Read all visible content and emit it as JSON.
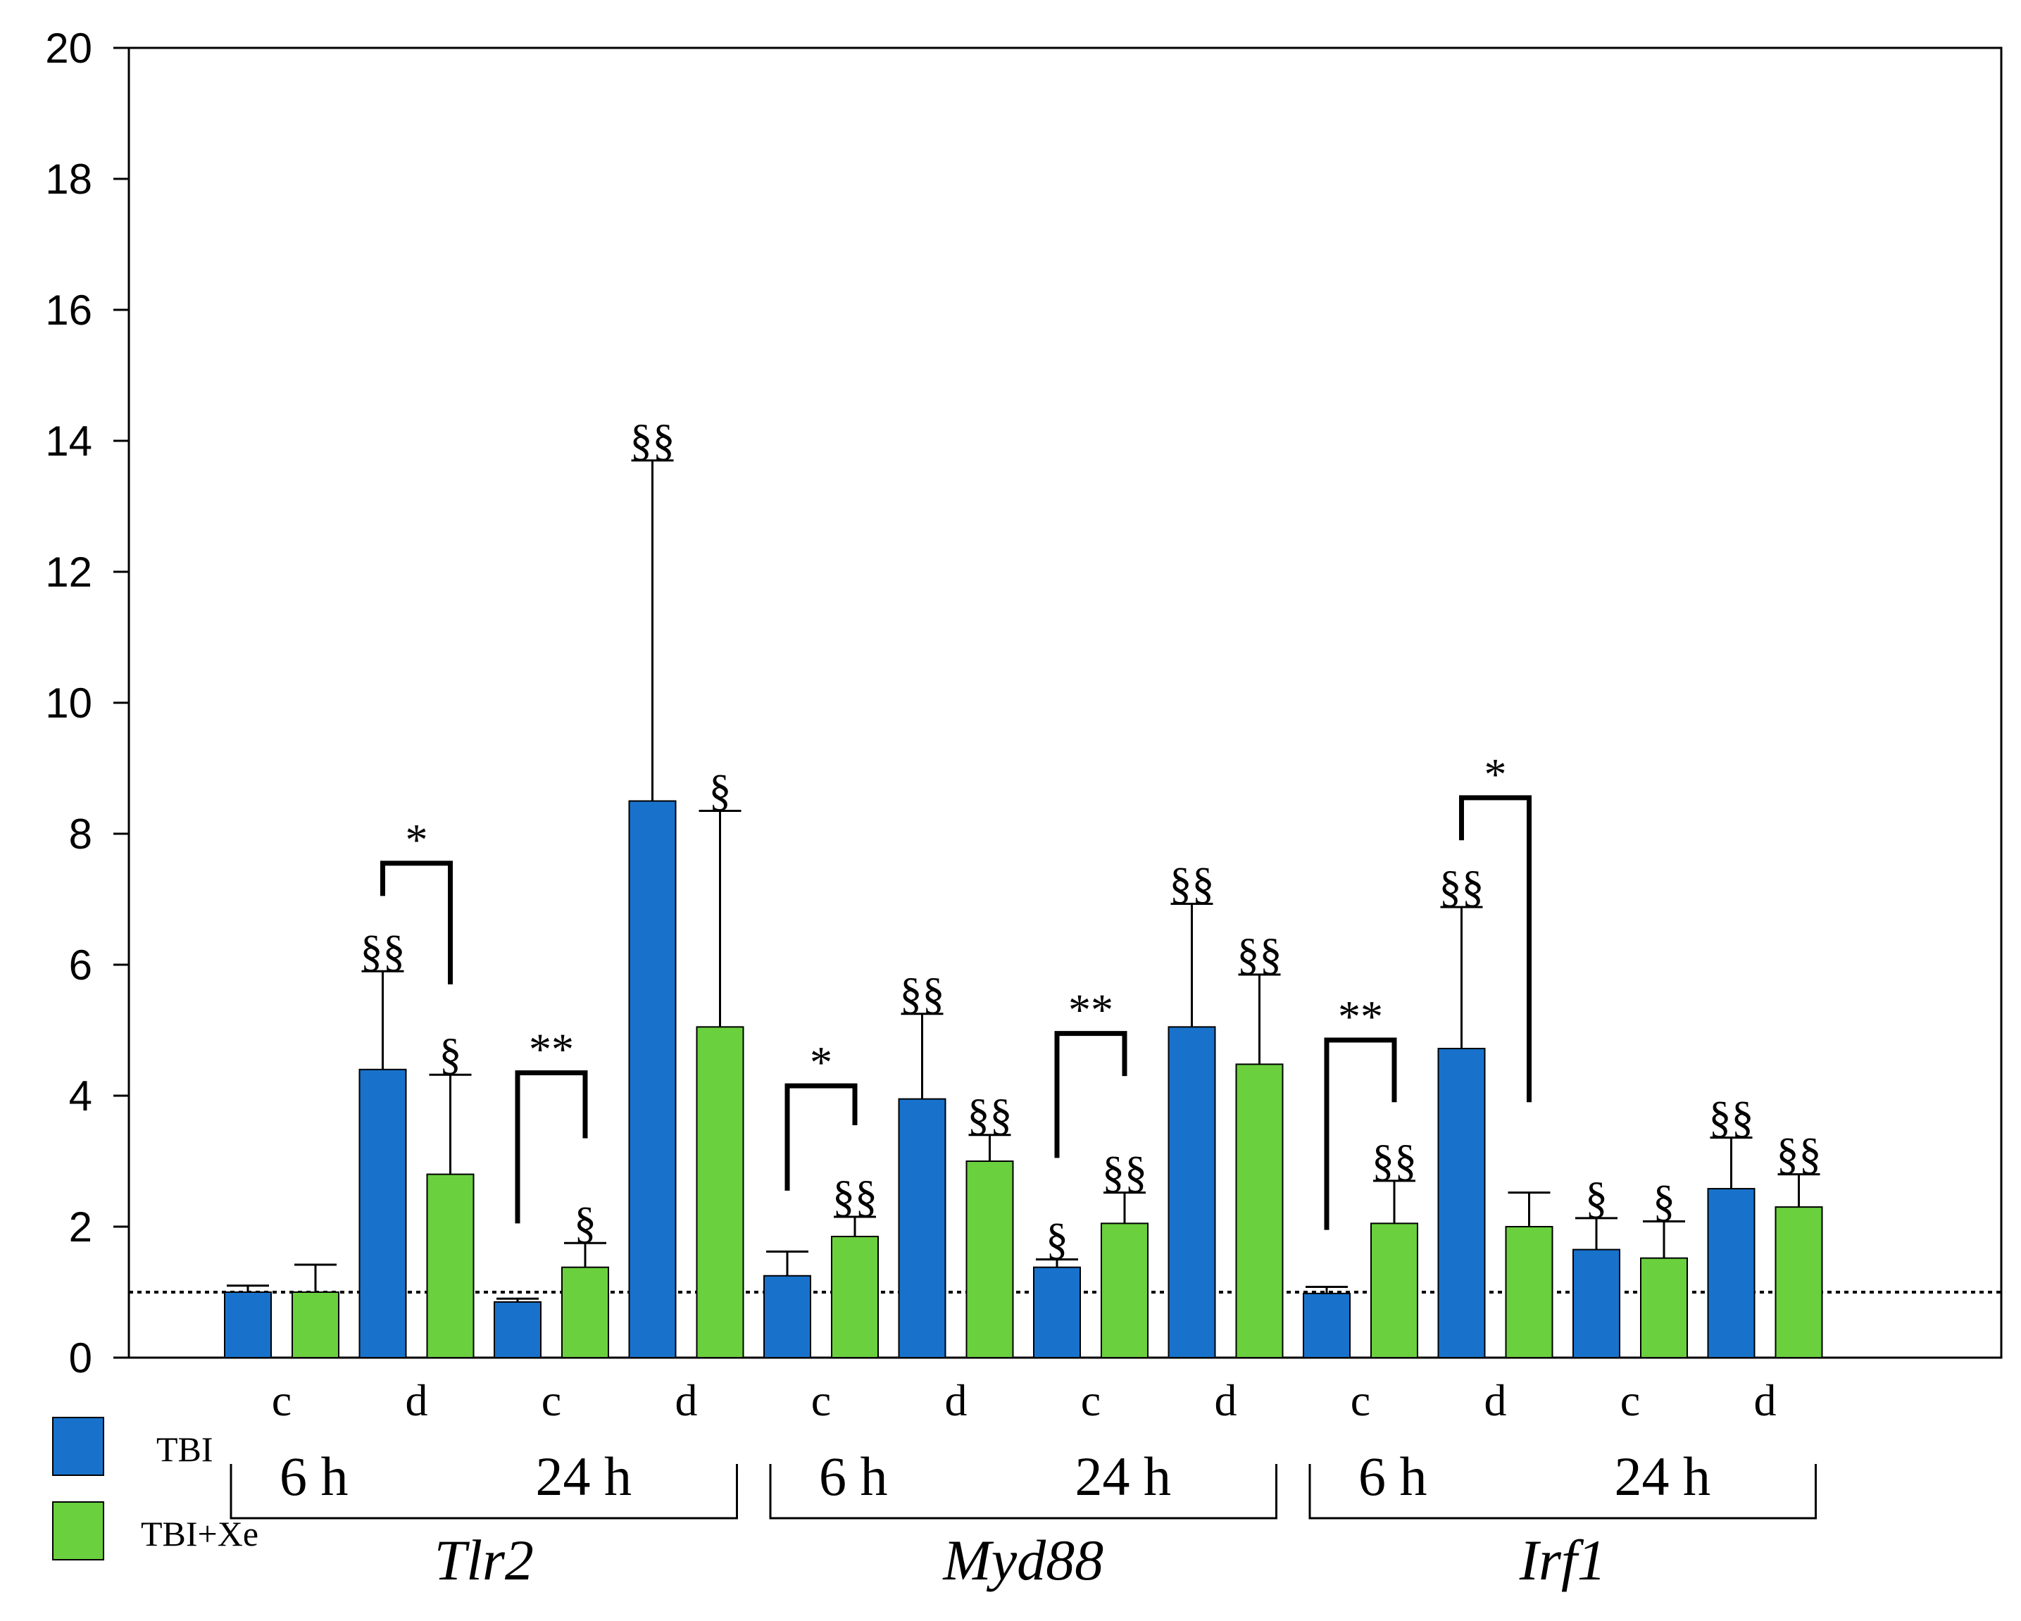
{
  "chart_data": {
    "type": "bar",
    "title": "",
    "ylabel": "",
    "xlabel": "",
    "ylim": [
      0,
      20
    ],
    "yticks": [
      "0",
      "2",
      "4",
      "6",
      "8",
      "10",
      "12",
      "14",
      "16",
      "18",
      "20"
    ],
    "reference_line": 1,
    "colors": {
      "TBI": "#1872cc",
      "TBI+Xe": "#6ad03e",
      "axis": "#000000"
    },
    "legend": [
      {
        "name": "TBI",
        "color": "#1872cc"
      },
      {
        "name": "TBI+Xe",
        "color": "#6ad03e"
      }
    ],
    "groups": [
      {
        "gene": "Tlr2",
        "times": [
          "6 h",
          "24 h"
        ],
        "regions": [
          "c",
          "d",
          "c",
          "d"
        ]
      },
      {
        "gene": "Myd88",
        "times": [
          "6 h",
          "24 h"
        ],
        "regions": [
          "c",
          "d",
          "c",
          "d"
        ]
      },
      {
        "gene": "Irf1",
        "times": [
          "6 h",
          "24 h"
        ],
        "regions": [
          "c",
          "d",
          "c",
          "d"
        ]
      }
    ],
    "categories": [
      "Tlr2 6h c",
      "Tlr2 6h d",
      "Tlr2 24h c",
      "Tlr2 24h d",
      "Myd88 6h c",
      "Myd88 6h d",
      "Myd88 24h c",
      "Myd88 24h d",
      "Irf1 6h c",
      "Irf1 6h d",
      "Irf1 24h c",
      "Irf1 24h d"
    ],
    "series": [
      {
        "name": "TBI",
        "values": [
          1.0,
          4.4,
          0.85,
          8.5,
          1.25,
          3.95,
          1.38,
          5.05,
          0.98,
          4.72,
          1.65,
          2.58
        ],
        "errors": [
          0.1,
          1.5,
          0.05,
          5.2,
          0.37,
          1.3,
          0.12,
          1.88,
          0.1,
          2.16,
          0.48,
          0.78
        ],
        "annotations": [
          "",
          "§§",
          "",
          "§§",
          "",
          "§§",
          "§",
          "§§",
          "",
          "§§",
          "§",
          "§§"
        ]
      },
      {
        "name": "TBI+Xe",
        "values": [
          1.0,
          2.8,
          1.38,
          5.05,
          1.85,
          3.0,
          2.05,
          4.48,
          2.05,
          2.0,
          1.52,
          2.3
        ],
        "errors": [
          0.42,
          1.52,
          0.37,
          3.3,
          0.3,
          0.4,
          0.47,
          1.37,
          0.65,
          0.52,
          0.56,
          0.5
        ],
        "annotations": [
          "",
          "§",
          "§",
          "§",
          "§§",
          "§§",
          "§§",
          "§§",
          "§§",
          "",
          "§",
          "§§"
        ]
      }
    ],
    "comparisons": [
      {
        "category": 1,
        "label": "*",
        "bracket_y": 7.55,
        "left_end": 7.05,
        "right_end": 5.7
      },
      {
        "category": 2,
        "label": "**",
        "bracket_y": 4.35,
        "left_end": 2.05,
        "right_end": 3.35
      },
      {
        "category": 4,
        "label": "*",
        "bracket_y": 4.15,
        "left_end": 2.55,
        "right_end": 3.55
      },
      {
        "category": 6,
        "label": "**",
        "bracket_y": 4.95,
        "left_end": 3.05,
        "right_end": 4.3
      },
      {
        "category": 8,
        "label": "**",
        "bracket_y": 4.85,
        "left_end": 1.95,
        "right_end": 3.9
      },
      {
        "category": 9,
        "label": "*",
        "bracket_y": 8.55,
        "left_end": 7.9,
        "right_end": 3.9
      }
    ]
  }
}
